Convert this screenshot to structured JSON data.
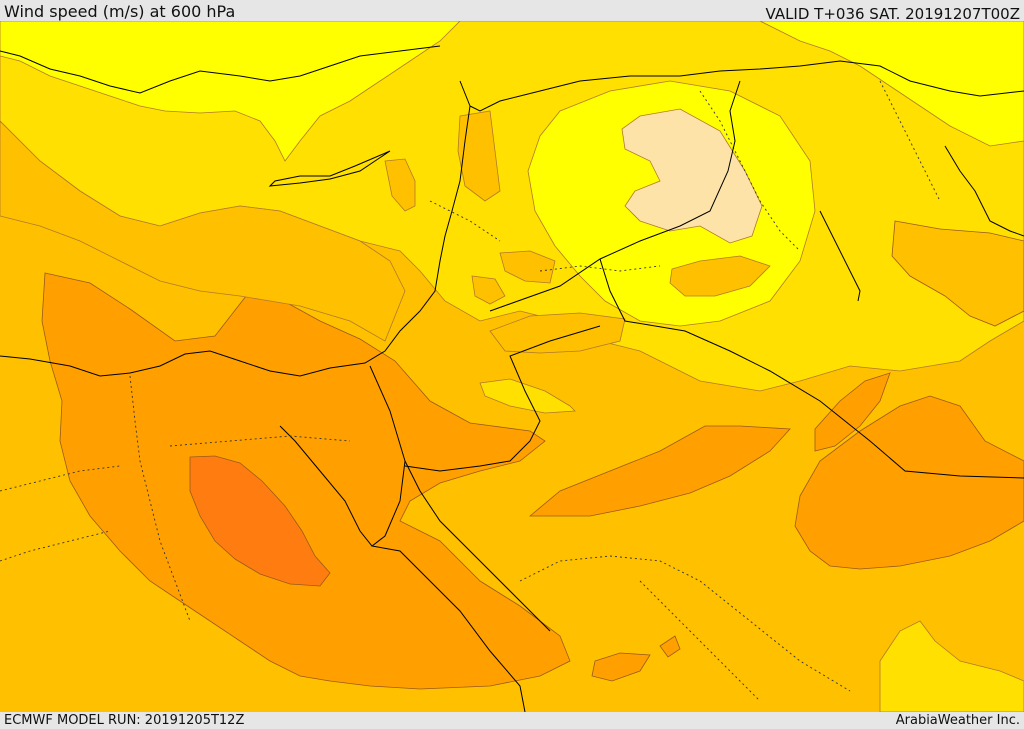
{
  "header": {
    "title": "Wind speed (m/s) at 600 hPa",
    "valid": "VALID T+036 SAT. 20191207T00Z"
  },
  "footer": {
    "model_run": "ECMWF MODEL RUN: 20191205T12Z",
    "credit": "ArabiaWeather Inc."
  },
  "colors": {
    "band_lightest": "#fde3a8",
    "band_yellow": "#ffff00",
    "band_gold": "#ffe000",
    "band_amber": "#ffc000",
    "band_orange": "#ffa000",
    "band_darkorange": "#ff7d10"
  }
}
